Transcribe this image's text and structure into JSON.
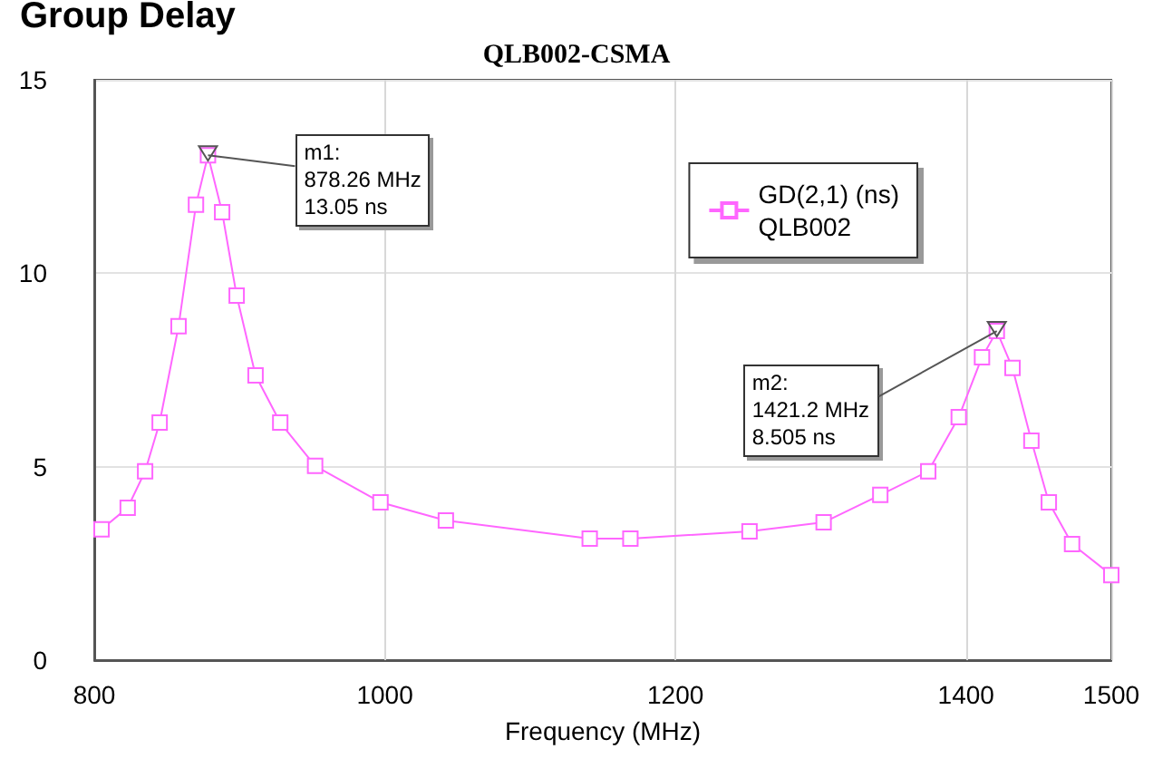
{
  "chart_data": {
    "type": "line",
    "title": "Group Delay",
    "subtitle": "QLB002-CSMA",
    "xlabel": "Frequency (MHz)",
    "x": [
      805,
      823,
      835,
      845,
      858,
      870,
      878.26,
      888,
      898,
      911,
      928,
      952,
      997,
      1042,
      1141,
      1169,
      1251,
      1302,
      1341,
      1374,
      1395,
      1411,
      1421.2,
      1432,
      1445,
      1457,
      1473,
      1500
    ],
    "series": [
      {
        "name": "GD(2,1) (ns)\nQLB002",
        "color": "#ff66ff",
        "values": [
          3.38,
          3.94,
          4.88,
          6.14,
          8.63,
          11.77,
          13.05,
          11.58,
          9.42,
          7.36,
          6.14,
          5.02,
          4.08,
          3.61,
          3.14,
          3.14,
          3.33,
          3.56,
          4.27,
          4.88,
          6.28,
          7.83,
          8.505,
          7.55,
          5.67,
          4.08,
          3.0,
          2.2
        ]
      }
    ],
    "annotations": [
      {
        "text": "m1:\n878.26 MHz\n13.05 ns",
        "x": 878.26,
        "y": 13.05
      },
      {
        "text": "m2:\n1421.2 MHz\n8.505 ns",
        "x": 1421.2,
        "y": 8.505
      }
    ],
    "xlim": [
      800,
      1500
    ],
    "xticks": [
      800,
      1000,
      1200,
      1400,
      1500
    ],
    "ylim": [
      0,
      15
    ],
    "yticks": [
      0,
      5,
      10,
      15
    ],
    "grid": true,
    "legend": "top right",
    "marker": "square",
    "line_style": "solid"
  }
}
